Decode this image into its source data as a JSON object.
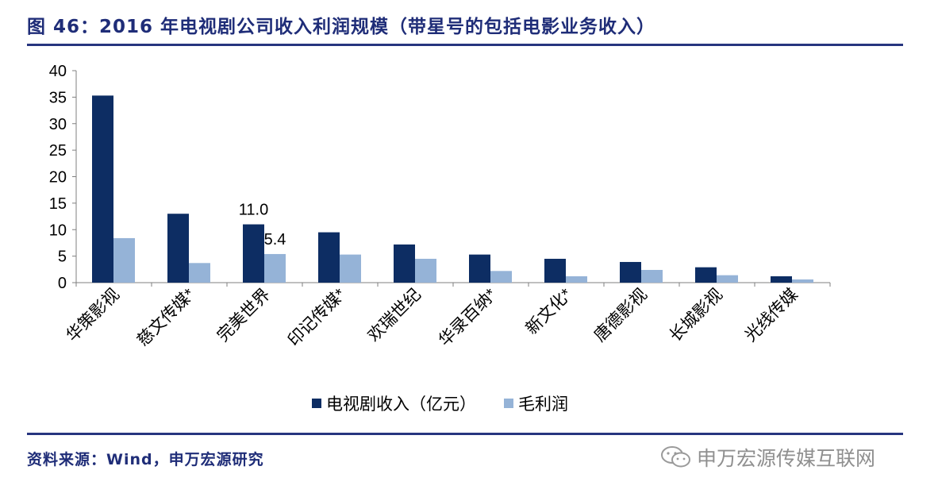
{
  "header": {
    "title": "图 46：2016 年电视剧公司收入利润规模（带星号的包括电影业务收入）"
  },
  "footer": {
    "source": "资料来源：Wind，申万宏源研究",
    "watermark": "申万宏源传媒互联网"
  },
  "colors": {
    "revenue": "#0d2d63",
    "profit": "#95b3d7",
    "rule": "#27357f",
    "title": "#1f2d78"
  },
  "chart_data": {
    "type": "bar",
    "categories": [
      "华策影视",
      "慈文传媒*",
      "完美世界",
      "印记传媒*",
      "欢瑞世纪",
      "华录百纳*",
      "新文化*",
      "唐德影视",
      "长城影视",
      "光线传媒"
    ],
    "series": [
      {
        "name": "电视剧收入（亿元）",
        "values": [
          35.3,
          13.0,
          11.0,
          9.5,
          7.2,
          5.3,
          4.5,
          3.9,
          2.9,
          1.2
        ]
      },
      {
        "name": "毛利润",
        "values": [
          8.4,
          3.7,
          5.4,
          5.3,
          4.5,
          2.2,
          1.2,
          2.4,
          1.4,
          0.6
        ]
      }
    ],
    "data_labels": [
      {
        "series": 0,
        "index": 2,
        "text": "11.0"
      },
      {
        "series": 1,
        "index": 2,
        "text": "5.4"
      }
    ],
    "yticks": [
      "0",
      "5",
      "10",
      "15",
      "20",
      "25",
      "30",
      "35",
      "40"
    ],
    "ylim": [
      0,
      40
    ],
    "grid": false,
    "legend_position": "bottom"
  }
}
